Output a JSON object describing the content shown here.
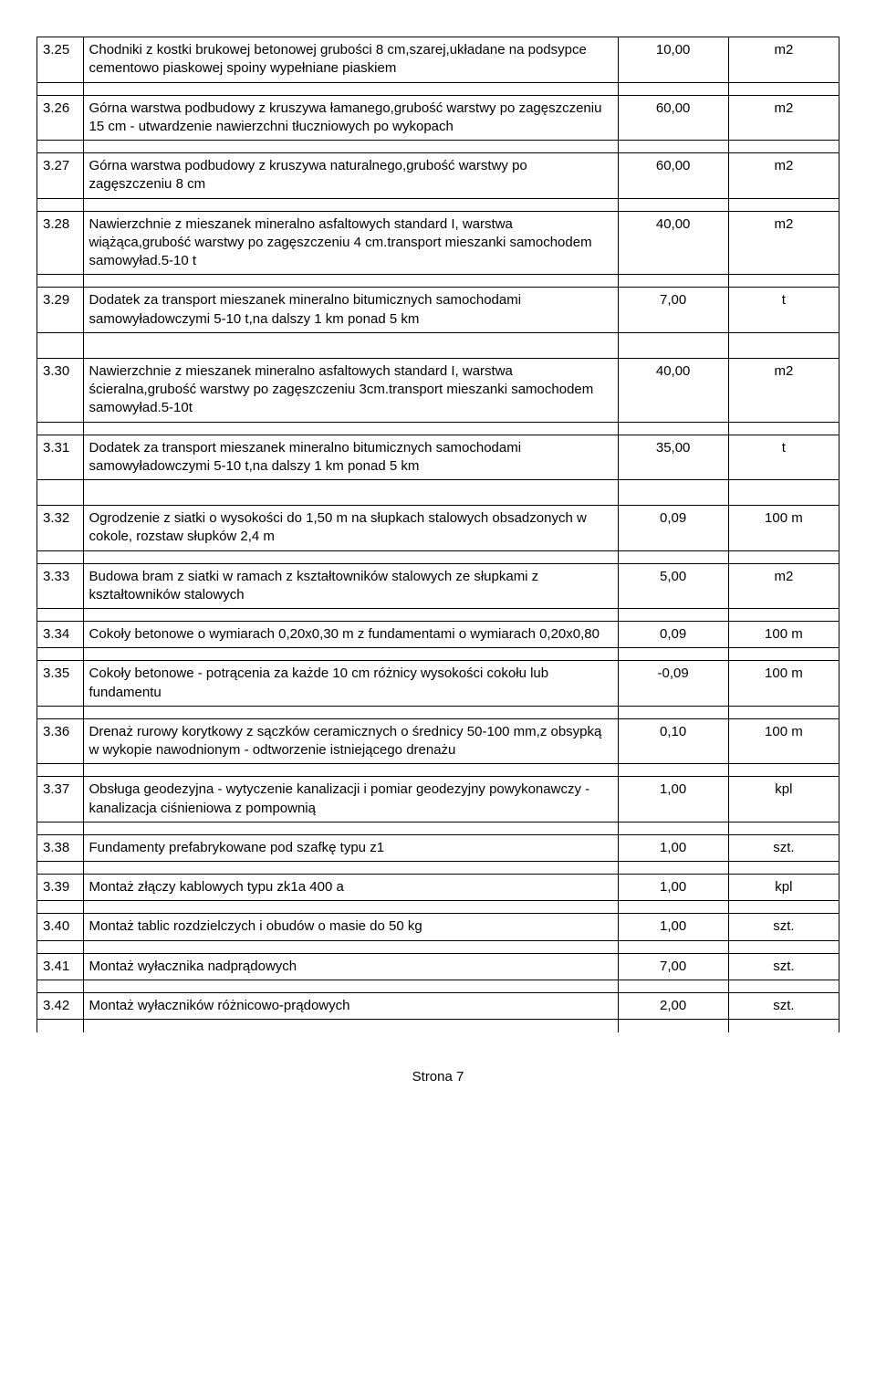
{
  "rows": [
    {
      "id": "3.25",
      "desc": "Chodniki z kostki brukowej betonowej grubości 8 cm,szarej,układane na podsypce cementowo piaskowej spoiny wypełniane piaskiem",
      "qty": "10,00",
      "unit": "m2",
      "spacerAfter": 1
    },
    {
      "id": "3.26",
      "desc": "Górna warstwa podbudowy z kruszywa łamanego,grubość warstwy po zagęszczeniu 15 cm - utwardzenie nawierzchni tłuczniowych po wykopach",
      "qty": "60,00",
      "unit": "m2",
      "spacerAfter": 1
    },
    {
      "id": "3.27",
      "desc": "Górna warstwa podbudowy z kruszywa naturalnego,grubość warstwy po zagęszczeniu 8 cm",
      "qty": "60,00",
      "unit": "m2",
      "spacerAfter": 1
    },
    {
      "id": "3.28",
      "desc": "Nawierzchnie z mieszanek mineralno asfaltowych standard I, warstwa wiążąca,grubość warstwy po zagęszczeniu 4 cm.transport mieszanki samochodem samowyład.5-10 t",
      "qty": "40,00",
      "unit": "m2",
      "spacerAfter": 1
    },
    {
      "id": "3.29",
      "desc": "Dodatek za transport mieszanek mineralno bitumicznych samochodami samowyładowczymi 5-10 t,na dalszy 1 km ponad 5 km",
      "qty": "7,00",
      "unit": "t",
      "spacerAfter": 2
    },
    {
      "id": "3.30",
      "desc": "Nawierzchnie z mieszanek mineralno asfaltowych standard I, warstwa ścieralna,grubość warstwy po zagęszczeniu 3cm.transport mieszanki samochodem samowyład.5-10t",
      "qty": "40,00",
      "unit": "m2",
      "spacerAfter": 1
    },
    {
      "id": "3.31",
      "desc": "Dodatek za transport mieszanek mineralno bitumicznych samochodami samowyładowczymi 5-10 t,na dalszy 1 km ponad 5 km",
      "qty": "35,00",
      "unit": "t",
      "spacerAfter": 2
    },
    {
      "id": "3.32",
      "desc": "Ogrodzenie z siatki o wysokości do 1,50 m na słupkach stalowych obsadzonych w cokole, rozstaw słupków 2,4 m",
      "qty": "0,09",
      "unit": "100 m",
      "spacerAfter": 1
    },
    {
      "id": "3.33",
      "desc": "Budowa bram z siatki w ramach z kształtowników stalowych ze słupkami z kształtowników stalowych",
      "qty": "5,00",
      "unit": "m2",
      "spacerAfter": 1
    },
    {
      "id": "3.34",
      "desc": "Cokoły betonowe o wymiarach 0,20x0,30 m z fundamentami o wymiarach 0,20x0,80",
      "qty": "0,09",
      "unit": "100 m",
      "spacerAfter": 1
    },
    {
      "id": "3.35",
      "desc": "Cokoły betonowe -  potrącenia za każde 10 cm różnicy wysokości cokołu lub fundamentu",
      "qty": "-0,09",
      "unit": "100 m",
      "spacerAfter": 1
    },
    {
      "id": "3.36",
      "desc": "Drenaż rurowy korytkowy z sączków ceramicznych o średnicy 50-100 mm,z obsypką w wykopie nawodnionym - odtworzenie istniejącego drenażu",
      "qty": "0,10",
      "unit": "100 m",
      "spacerAfter": 1
    },
    {
      "id": "3.37",
      "desc": "Obsługa geodezyjna - wytyczenie kanalizacji i pomiar geodezyjny powykonawczy - kanalizacja ciśnieniowa z pompownią",
      "qty": "1,00",
      "unit": "kpl",
      "spacerAfter": 1
    },
    {
      "id": "3.38",
      "desc": "Fundamenty prefabrykowane pod szafkę typu z1",
      "qty": "1,00",
      "unit": "szt.",
      "spacerAfter": 1
    },
    {
      "id": "3.39",
      "desc": "Montaż złączy kablowych typu zk1a 400 a",
      "qty": "1,00",
      "unit": "kpl",
      "spacerAfter": 1
    },
    {
      "id": "3.40",
      "desc": "Montaż tablic rozdzielczych i obudów o masie do 50 kg",
      "qty": "1,00",
      "unit": "szt.",
      "spacerAfter": 1
    },
    {
      "id": "3.41",
      "desc": "Montaż wyłacznika nadprądowych",
      "qty": "7,00",
      "unit": "szt.",
      "spacerAfter": 1
    },
    {
      "id": "3.42",
      "desc": "Montaż wyłaczników różnicowo-prądowych",
      "qty": "2,00",
      "unit": "szt.",
      "spacerAfter": 1
    }
  ],
  "footer": "Strona 7"
}
